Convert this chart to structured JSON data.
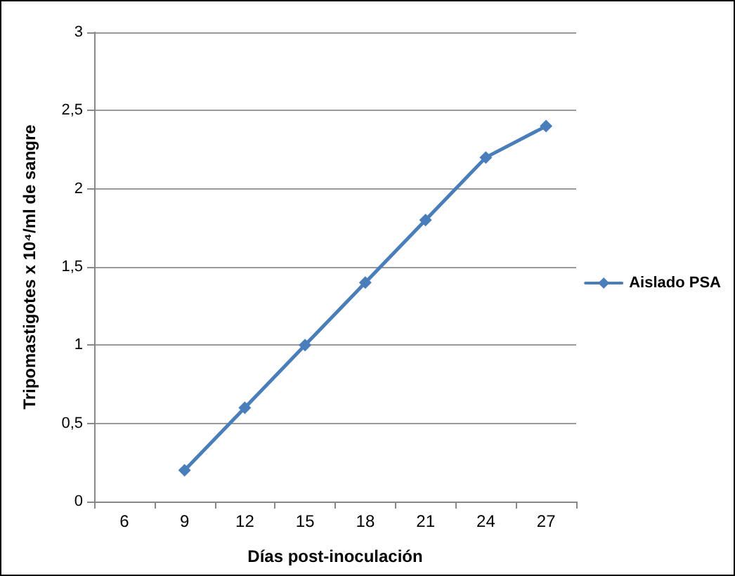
{
  "chart_data": {
    "type": "line",
    "xlabel": "Días post-inoculación",
    "ylabel": "Tripomastigotes x 10⁴/ml de sangre",
    "categories": [
      "6",
      "9",
      "12",
      "15",
      "18",
      "21",
      "24",
      "27"
    ],
    "series": [
      {
        "name": "Aislado PSA",
        "color": "#4a7ebb",
        "values": [
          null,
          0.2,
          0.6,
          1.0,
          1.4,
          1.8,
          2.2,
          2.4
        ]
      }
    ],
    "ylim": [
      0,
      3
    ],
    "yticks": [
      {
        "value": 0,
        "label": "0"
      },
      {
        "value": 0.5,
        "label": "0,5"
      },
      {
        "value": 1,
        "label": "1"
      },
      {
        "value": 1.5,
        "label": "1,5"
      },
      {
        "value": 2,
        "label": "2"
      },
      {
        "value": 2.5,
        "label": "2,5"
      },
      {
        "value": 3,
        "label": "3"
      }
    ],
    "grid": "y",
    "legend": "right",
    "marker": "diamond",
    "line_style": "solid"
  }
}
